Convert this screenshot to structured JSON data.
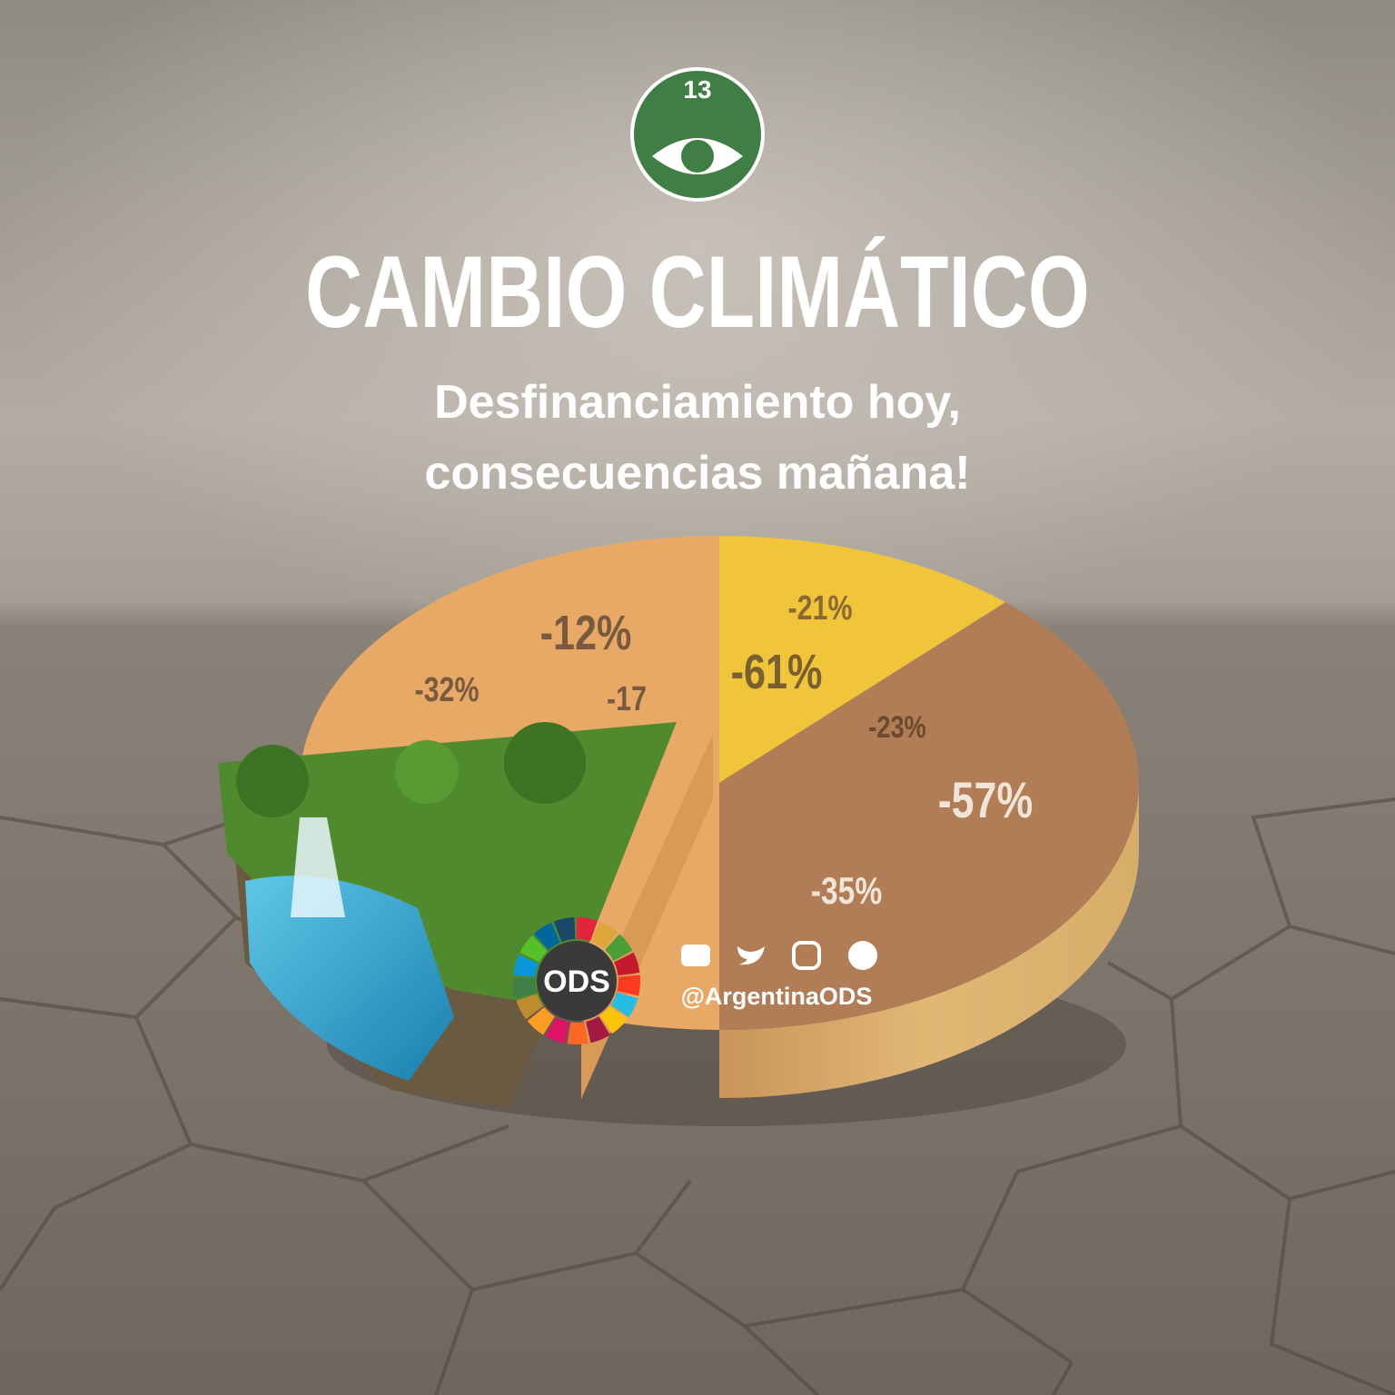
{
  "badge": {
    "number": "13"
  },
  "header": {
    "title": "CAMBIO CLIMÁTICO",
    "subtitle": [
      "Desfinanciamiento hoy,",
      "consecuencias mañana!"
    ]
  },
  "pie": {
    "labels": [
      "-21%",
      "-12%",
      "-32%",
      "-17",
      "-61%",
      "-23%",
      "-57%",
      "-35%"
    ]
  },
  "footer": {
    "logo": "ODS",
    "handle": "@ArgentinaODS"
  }
}
